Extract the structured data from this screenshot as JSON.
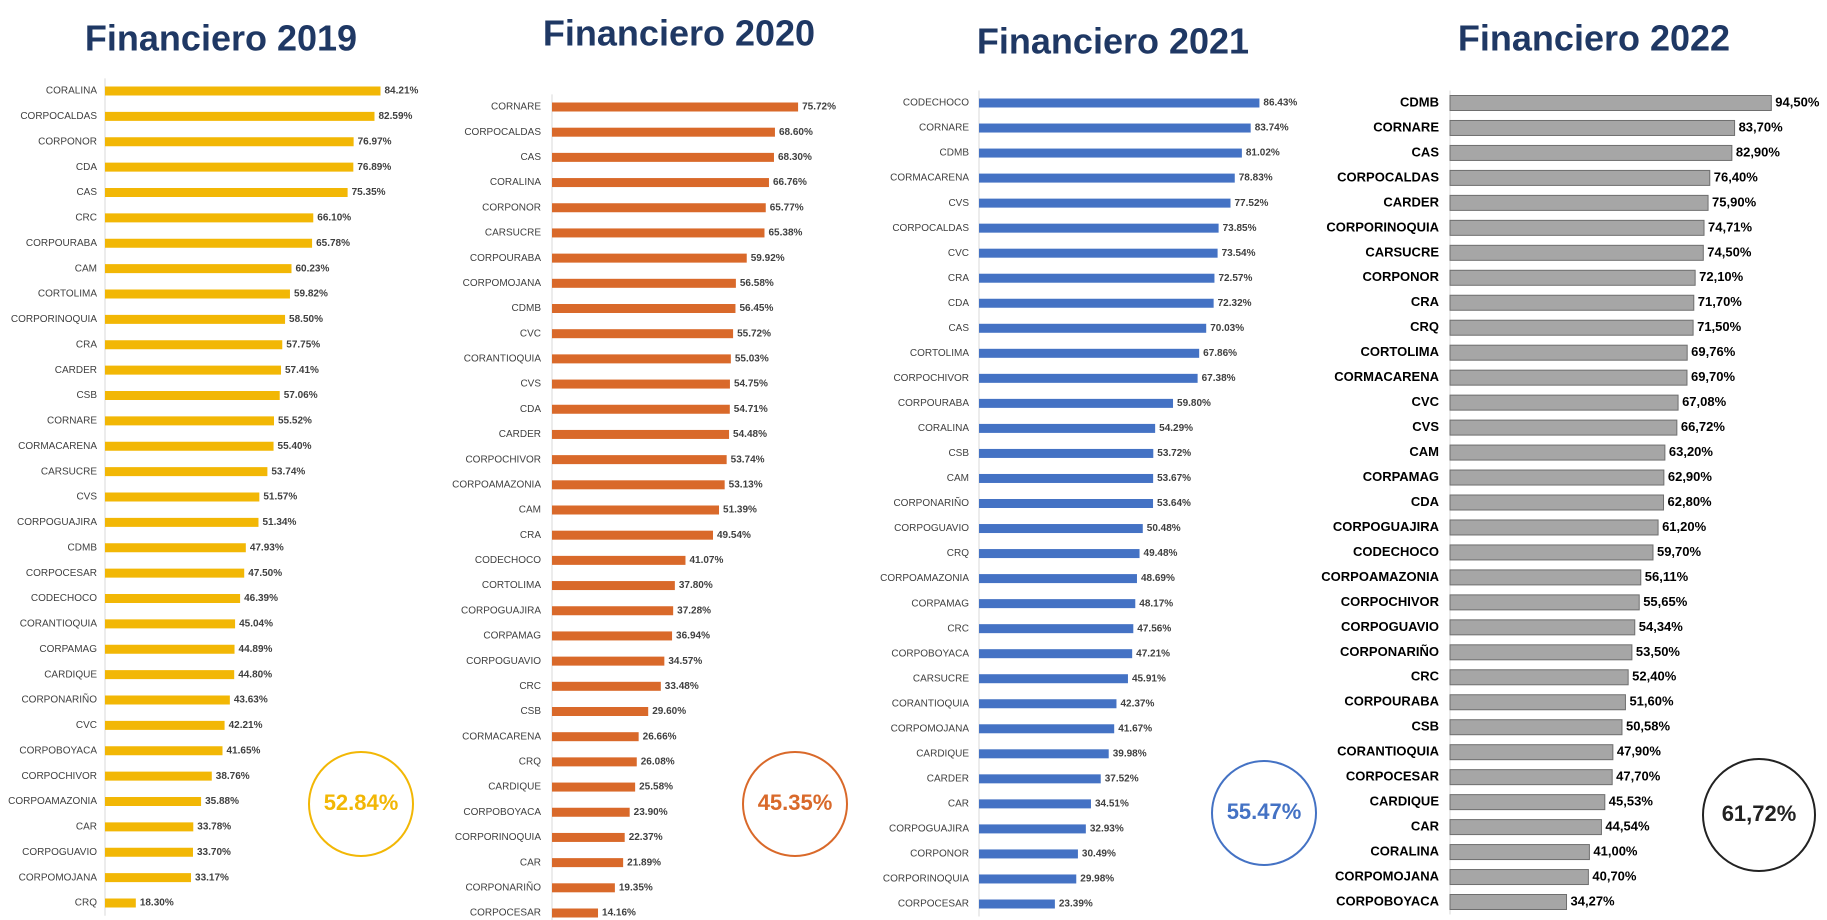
{
  "chart_data": [
    {
      "type": "bar",
      "title": "Financiero 2019",
      "color": "#f2b705",
      "xlim": [
        10,
        90
      ],
      "annotation": "52.84%",
      "categories": [
        "CORALINA",
        "CORPOCALDAS",
        "CORPONOR",
        "CDA",
        "CAS",
        "CRC",
        "CORPOURABA",
        "CAM",
        "CORTOLIMA",
        "CORPORINOQUIA",
        "CRA",
        "CARDER",
        "CSB",
        "CORNARE",
        "CORMACARENA",
        "CARSUCRE",
        "CVS",
        "CORPOGUAJIRA",
        "CDMB",
        "CORPOCESAR",
        "CODECHOCO",
        "CORANTIOQUIA",
        "CORPAMAG",
        "CARDIQUE",
        "CORPONARIÑO",
        "CVC",
        "CORPOBOYACA",
        "CORPOCHIVOR",
        "CORPOAMAZONIA",
        "CAR",
        "CORPOGUAVIO",
        "CORPOMOJANA",
        "CRQ"
      ],
      "values": [
        84.21,
        82.59,
        76.97,
        76.89,
        75.35,
        66.1,
        65.78,
        60.23,
        59.82,
        58.5,
        57.75,
        57.41,
        57.06,
        55.52,
        55.4,
        53.74,
        51.57,
        51.34,
        47.93,
        47.5,
        46.39,
        45.04,
        44.89,
        44.8,
        43.63,
        42.21,
        41.65,
        38.76,
        35.88,
        33.78,
        33.7,
        33.17,
        18.3
      ],
      "value_labels": [
        "84.21%",
        "82.59%",
        "76.97%",
        "76.89%",
        "75.35%",
        "66.10%",
        "65.78%",
        "60.23%",
        "59.82%",
        "58.50%",
        "57.75%",
        "57.41%",
        "57.06%",
        "55.52%",
        "55.40%",
        "53.74%",
        "51.57%",
        "51.34%",
        "47.93%",
        "47.50%",
        "46.39%",
        "45.04%",
        "44.89%",
        "44.80%",
        "43.63%",
        "42.21%",
        "41.65%",
        "38.76%",
        "35.88%",
        "33.78%",
        "33.70%",
        "33.17%",
        "18.30%"
      ]
    },
    {
      "type": "bar",
      "title": "Financiero 2020",
      "color": "#d9692a",
      "xlim": [
        0,
        80
      ],
      "annotation": "45.35%",
      "categories": [
        "CORNARE",
        "CORPOCALDAS",
        "CAS",
        "CORALINA",
        "CORPONOR",
        "CARSUCRE",
        "CORPOURABA",
        "CORPOMOJANA",
        "CDMB",
        "CVC",
        "CORANTIOQUIA",
        "CVS",
        "CDA",
        "CARDER",
        "CORPOCHIVOR",
        "CORPOAMAZONIA",
        "CAM",
        "CRA",
        "CODECHOCO",
        "CORTOLIMA",
        "CORPOGUAJIRA",
        "CORPAMAG",
        "CORPOGUAVIO",
        "CRC",
        "CSB",
        "CORMACARENA",
        "CRQ",
        "CARDIQUE",
        "CORPOBOYACA",
        "CORPORINOQUIA",
        "CAR",
        "CORPONARIÑO",
        "CORPOCESAR"
      ],
      "values": [
        75.72,
        68.6,
        68.3,
        66.76,
        65.77,
        65.38,
        59.92,
        56.58,
        56.45,
        55.72,
        55.03,
        54.75,
        54.71,
        54.48,
        53.74,
        53.13,
        51.39,
        49.54,
        41.07,
        37.8,
        37.28,
        36.94,
        34.57,
        33.48,
        29.6,
        26.66,
        26.08,
        25.58,
        23.9,
        22.37,
        21.89,
        19.35,
        14.16
      ],
      "value_labels": [
        "75.72%",
        "68.60%",
        "68.30%",
        "66.76%",
        "65.77%",
        "65.38%",
        "59.92%",
        "56.58%",
        "56.45%",
        "55.72%",
        "55.03%",
        "54.75%",
        "54.71%",
        "54.48%",
        "53.74%",
        "53.13%",
        "51.39%",
        "49.54%",
        "41.07%",
        "37.80%",
        "37.28%",
        "36.94%",
        "34.57%",
        "33.48%",
        "29.60%",
        "26.66%",
        "26.08%",
        "25.58%",
        "23.90%",
        "22.37%",
        "21.89%",
        "19.35%",
        "14.16%"
      ]
    },
    {
      "type": "bar",
      "title": "Financiero 2021",
      "color": "#4472c4",
      "xlim": [
        0,
        90
      ],
      "annotation": "55.47%",
      "categories": [
        "CODECHOCO",
        "CORNARE",
        "CDMB",
        "CORMACARENA",
        "CVS",
        "CORPOCALDAS",
        "CVC",
        "CRA",
        "CDA",
        "CAS",
        "CORTOLIMA",
        "CORPOCHIVOR",
        "CORPOURABA",
        "CORALINA",
        "CSB",
        "CAM",
        "CORPONARIÑO",
        "CORPOGUAVIO",
        "CRQ",
        "CORPOAMAZONIA",
        "CORPAMAG",
        "CRC",
        "CORPOBOYACA",
        "CARSUCRE",
        "CORANTIOQUIA",
        "CORPOMOJANA",
        "CARDIQUE",
        "CARDER",
        "CAR",
        "CORPOGUAJIRA",
        "CORPONOR",
        "CORPORINOQUIA",
        "CORPOCESAR"
      ],
      "values": [
        86.43,
        83.74,
        81.02,
        78.83,
        77.52,
        73.85,
        73.54,
        72.57,
        72.32,
        70.03,
        67.86,
        67.38,
        59.8,
        54.29,
        53.72,
        53.67,
        53.64,
        50.48,
        49.48,
        48.69,
        48.17,
        47.56,
        47.21,
        45.91,
        42.37,
        41.67,
        39.98,
        37.52,
        34.51,
        32.93,
        30.49,
        29.98,
        23.39
      ],
      "value_labels": [
        "86.43%",
        "83.74%",
        "81.02%",
        "78.83%",
        "77.52%",
        "73.85%",
        "73.54%",
        "72.57%",
        "72.32%",
        "70.03%",
        "67.86%",
        "67.38%",
        "59.80%",
        "54.29%",
        "53.72%",
        "53.67%",
        "53.64%",
        "50.48%",
        "49.48%",
        "48.69%",
        "48.17%",
        "47.56%",
        "47.21%",
        "45.91%",
        "42.37%",
        "41.67%",
        "39.98%",
        "37.52%",
        "34.51%",
        "32.93%",
        "30.49%",
        "29.98%",
        "23.39%"
      ]
    },
    {
      "type": "bar",
      "title": "Financiero 2022",
      "color": "#a6a6a6",
      "xlim": [
        0,
        100
      ],
      "annotation": "61,72%",
      "categories": [
        "CDMB",
        "CORNARE",
        "CAS",
        "CORPOCALDAS",
        "CARDER",
        "CORPORINOQUIA",
        "CARSUCRE",
        "CORPONOR",
        "CRA",
        "CRQ",
        "CORTOLIMA",
        "CORMACARENA",
        "CVC",
        "CVS",
        "CAM",
        "CORPAMAG",
        "CDA",
        "CORPOGUAJIRA",
        "CODECHOCO",
        "CORPOAMAZONIA",
        "CORPOCHIVOR",
        "CORPOGUAVIO",
        "CORPONARIÑO",
        "CRC",
        "CORPOURABA",
        "CSB",
        "CORANTIOQUIA",
        "CORPOCESAR",
        "CARDIQUE",
        "CAR",
        "CORALINA",
        "CORPOMOJANA",
        "CORPOBOYACA"
      ],
      "values": [
        94.5,
        83.7,
        82.9,
        76.4,
        75.9,
        74.71,
        74.5,
        72.1,
        71.7,
        71.5,
        69.76,
        69.7,
        67.08,
        66.72,
        63.2,
        62.9,
        62.8,
        61.2,
        59.7,
        56.11,
        55.65,
        54.34,
        53.5,
        52.4,
        51.6,
        50.58,
        47.9,
        47.7,
        45.53,
        44.54,
        41.0,
        40.7,
        34.27
      ],
      "value_labels": [
        "94,50%",
        "83,70%",
        "82,90%",
        "76,40%",
        "75,90%",
        "74,71%",
        "74,50%",
        "72,10%",
        "71,70%",
        "71,50%",
        "69,76%",
        "69,70%",
        "67,08%",
        "66,72%",
        "63,20%",
        "62,90%",
        "62,80%",
        "61,20%",
        "59,70%",
        "56,11%",
        "55,65%",
        "54,34%",
        "53,50%",
        "52,40%",
        "51,60%",
        "50,58%",
        "47,90%",
        "47,70%",
        "45,53%",
        "44,54%",
        "41,00%",
        "40,70%",
        "34,27%"
      ]
    }
  ]
}
